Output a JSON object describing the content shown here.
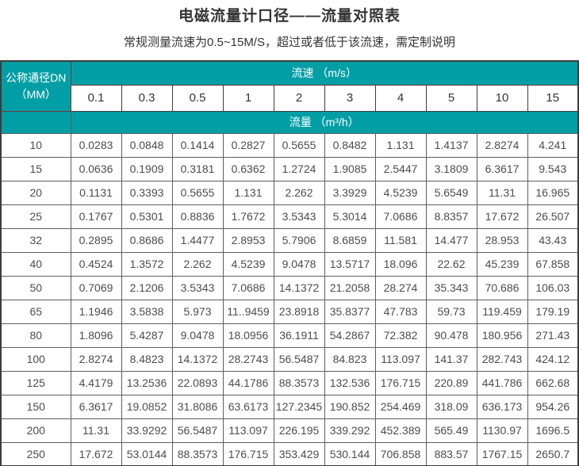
{
  "page": {
    "title": "电磁流量计口径——流量对照表",
    "subtitle": "常规测量流速为0.5~15M/S，超过或者低于该流速，需定制说明"
  },
  "colors": {
    "header_teal": "#019fa5",
    "header_inner_border": "#6d3b3b",
    "grid_border": "#5e5e5e",
    "data_text": "#4c4c4c"
  },
  "chart_data": {
    "type": "table",
    "title": "电磁流量计口径——流量对照表",
    "subtitle": "常规测量流速为0.5~15M/S，超过或者低于该流速，需定制说明",
    "corner_header_line1": "公称通径DN",
    "corner_header_line2": "（MM）",
    "column_group_header": "流速 （m/s）",
    "value_group_header": "流量 （m³/h）",
    "columns": [
      "0.1",
      "0.3",
      "0.5",
      "1",
      "2",
      "3",
      "4",
      "5",
      "10",
      "15"
    ],
    "rows": [
      {
        "dn": "10",
        "values": [
          "0.0283",
          "0.0848",
          "0.1414",
          "0.2827",
          "0.5655",
          "0.8482",
          "1.131",
          "1.4137",
          "2.8274",
          "4.241"
        ]
      },
      {
        "dn": "15",
        "values": [
          "0.0636",
          "0.1909",
          "0.3181",
          "0.6362",
          "1.2724",
          "1.9085",
          "2.5447",
          "3.1809",
          "6.3617",
          "9.543"
        ]
      },
      {
        "dn": "20",
        "values": [
          "0.1131",
          "0.3393",
          "0.5655",
          "1.131",
          "2.262",
          "3.3929",
          "4.5239",
          "5.6549",
          "11.31",
          "16.965"
        ]
      },
      {
        "dn": "25",
        "values": [
          "0.1767",
          "0.5301",
          "0.8836",
          "1.7672",
          "3.5343",
          "5.3014",
          "7.0686",
          "8.8357",
          "17.672",
          "26.507"
        ]
      },
      {
        "dn": "32",
        "values": [
          "0.2895",
          "0.8686",
          "1.4477",
          "2.8953",
          "5.7906",
          "8.6859",
          "11.581",
          "14.477",
          "28.953",
          "43.43"
        ]
      },
      {
        "dn": "40",
        "values": [
          "0.4524",
          "1.3572",
          "2.262",
          "4.5239",
          "9.0478",
          "13.5717",
          "18.096",
          "22.62",
          "45.239",
          "67.858"
        ]
      },
      {
        "dn": "50",
        "values": [
          "0.7069",
          "2.1206",
          "3.5343",
          "7.0686",
          "14.1372",
          "21.2058",
          "28.274",
          "35.343",
          "70.686",
          "106.03"
        ]
      },
      {
        "dn": "65",
        "values": [
          "1.1946",
          "3.5838",
          "5.973",
          "11..9459",
          "23.8918",
          "35.8377",
          "47.783",
          "59.73",
          "119.459",
          "179.19"
        ]
      },
      {
        "dn": "80",
        "values": [
          "1.8096",
          "5.4287",
          "9.0478",
          "18.0956",
          "36.1911",
          "54.2867",
          "72.382",
          "90.478",
          "180.956",
          "271.43"
        ]
      },
      {
        "dn": "100",
        "values": [
          "2.8274",
          "8.4823",
          "14.1372",
          "28.2743",
          "56.5487",
          "84.823",
          "113.097",
          "141.37",
          "282.743",
          "424.12"
        ]
      },
      {
        "dn": "125",
        "values": [
          "4.4179",
          "13.2536",
          "22.0893",
          "44.1786",
          "88.3573",
          "132.536",
          "176.715",
          "220.89",
          "441.786",
          "662.68"
        ]
      },
      {
        "dn": "150",
        "values": [
          "6.3617",
          "19.0852",
          "31.8086",
          "63.6173",
          "127.2345",
          "190.852",
          "254.469",
          "318.09",
          "636.173",
          "954.26"
        ]
      },
      {
        "dn": "200",
        "values": [
          "11.31",
          "33.9292",
          "56.5487",
          "113.097",
          "226.195",
          "339.292",
          "452.389",
          "565.49",
          "1130.97",
          "1696.5"
        ]
      },
      {
        "dn": "250",
        "values": [
          "17.672",
          "53.0144",
          "88.3573",
          "176.715",
          "353.429",
          "530.144",
          "706.858",
          "883.57",
          "1767.15",
          "2650.7"
        ]
      }
    ]
  }
}
